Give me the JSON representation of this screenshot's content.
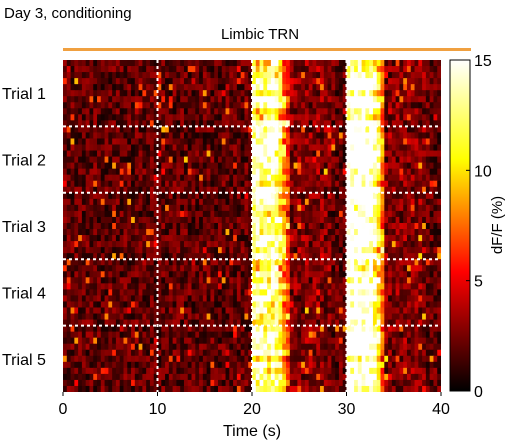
{
  "chart_data": {
    "type": "heatmap",
    "title": "Day 3, conditioning",
    "subtitle": "Limbic TRN",
    "xlabel": "Time (s)",
    "x_ticks": [
      0,
      10,
      20,
      30,
      40
    ],
    "xlim": [
      0,
      40
    ],
    "row_groups": [
      "Trial 1",
      "Trial 2",
      "Trial 3",
      "Trial 4",
      "Trial 5"
    ],
    "rows_per_group": 11,
    "dashed_vertical_lines_at_s": [
      10,
      20,
      30
    ],
    "colorbar": {
      "label": "dF/F (%)",
      "ticks": [
        0,
        5,
        10,
        15
      ],
      "range": [
        0,
        15
      ],
      "colormap": "hot"
    },
    "response_windows_s": [
      {
        "start": 20,
        "end": 22.5,
        "peak_dFF_pct": 14
      },
      {
        "start": 30,
        "end": 32.5,
        "peak_dFF_pct": 15
      }
    ],
    "baseline_dFF_pct": 2
  },
  "colors": {
    "subtitle_bar": "#f0a040",
    "background": "#ffffff",
    "heatmap_floor": "#000000"
  }
}
